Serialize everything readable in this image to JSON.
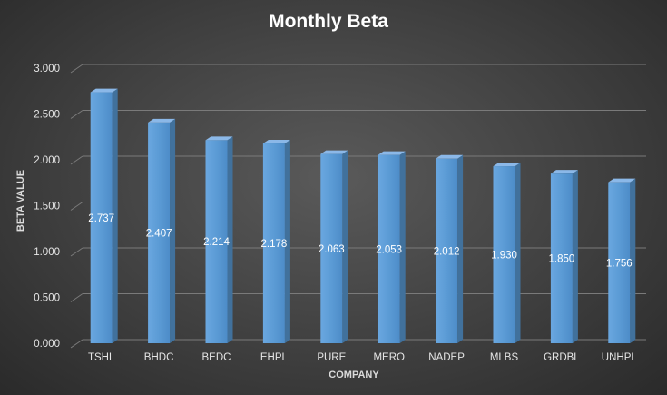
{
  "chart_data": {
    "type": "bar",
    "title": "Monthly Beta",
    "xlabel": "COMPANY",
    "ylabel": "BETA VALUE",
    "categories": [
      "TSHL",
      "BHDC",
      "BEDC",
      "EHPL",
      "PURE",
      "MERO",
      "NADEP",
      "MLBS",
      "GRDBL",
      "UNHPL"
    ],
    "values": [
      2.737,
      2.407,
      2.214,
      2.178,
      2.063,
      2.053,
      2.012,
      1.93,
      1.85,
      1.756
    ],
    "data_labels": [
      "2.737",
      "2.407",
      "2.214",
      "2.178",
      "2.063",
      "2.053",
      "2.012",
      "1.930",
      "1.850",
      "1.756"
    ],
    "yticks": [
      "0.000",
      "0.500",
      "1.000",
      "1.500",
      "2.000",
      "2.500",
      "3.000"
    ],
    "ylim": [
      0,
      3
    ],
    "grid": true,
    "legend": "none",
    "style": "3d-column",
    "colors": {
      "background": "#404040",
      "bar_front": "#5b9bd5",
      "bar_side": "#41719c",
      "bar_top": "#8bb8e8",
      "gridline": "#7a7a7a",
      "text": "#ffffff"
    }
  }
}
